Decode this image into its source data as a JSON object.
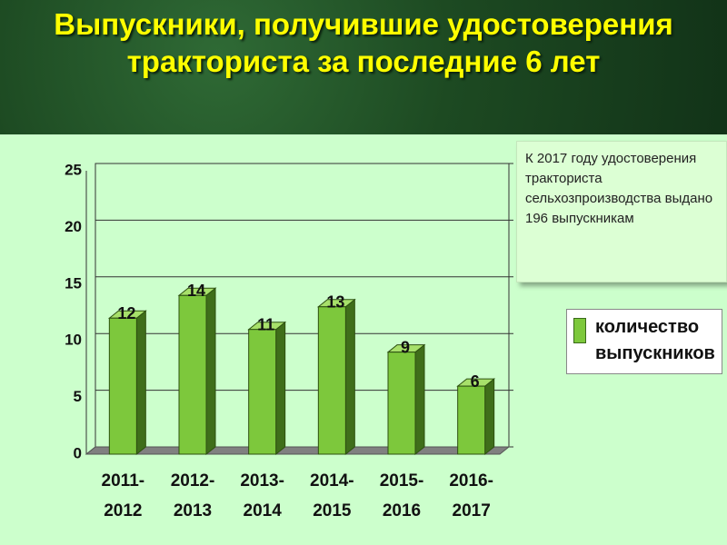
{
  "chart_data": {
    "type": "bar",
    "title": "Выпускники, получившие удостоверения тракториста за последние 6 лет",
    "annotation": "К 2017 году удостоверения тракториста сельхозпроизводства выдано  196 выпускникам",
    "categories": [
      "2011-2012",
      "2012-2013",
      "2013-2014",
      "2014-2015",
      "2015-2016",
      "2016-2017"
    ],
    "series": [
      {
        "name": "количество выпускников",
        "color": "#7dc83c",
        "values": [
          12,
          14,
          11,
          13,
          9,
          6
        ]
      }
    ],
    "ylim": [
      0,
      25
    ],
    "yticks": [
      0,
      5,
      10,
      15,
      20,
      25
    ],
    "grid": true,
    "legend": "right"
  }
}
